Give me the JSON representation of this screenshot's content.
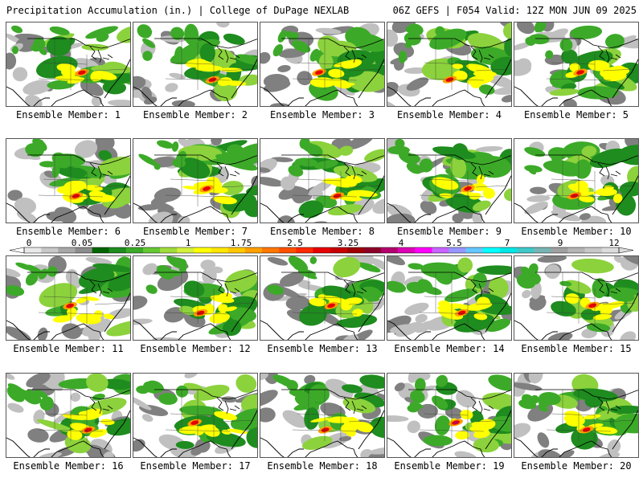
{
  "header": {
    "title": "Precipitation Accumulation (in.) | College of DuPage NEXLAB",
    "valid": "06Z GEFS | F054 Valid: 12Z MON JUN 09 2025"
  },
  "colorbar": {
    "labels": [
      "0",
      "0.05",
      "0.25",
      "1",
      "1.75",
      "2.5",
      "3.25",
      "4",
      "5.5",
      "7",
      "9",
      "12"
    ],
    "colors": [
      "#e8e8e8",
      "#c8c8c8",
      "#a8a8a8",
      "#8c8c8c",
      "#006400",
      "#1e8c1e",
      "#3caa28",
      "#64c832",
      "#a0dc3c",
      "#d2f03c",
      "#ffff00",
      "#ffe600",
      "#ffc800",
      "#ffa000",
      "#ff7800",
      "#ff5000",
      "#ff2800",
      "#e60000",
      "#c80000",
      "#a00000",
      "#8c0028",
      "#b4006e",
      "#dc00b4",
      "#ff00ff",
      "#c864ff",
      "#9696ff",
      "#64c8ff",
      "#00ffff",
      "#00e6e6",
      "#40c8c8",
      "#78b4b4",
      "#a0a0a0",
      "#b4b4b4",
      "#c8c8c8",
      "#dcdcdc"
    ]
  },
  "members": [
    {
      "label": "Ensemble Member: 1"
    },
    {
      "label": "Ensemble Member: 2"
    },
    {
      "label": "Ensemble Member: 3"
    },
    {
      "label": "Ensemble Member: 4"
    },
    {
      "label": "Ensemble Member: 5"
    },
    {
      "label": "Ensemble Member: 6"
    },
    {
      "label": "Ensemble Member: 7"
    },
    {
      "label": "Ensemble Member: 8"
    },
    {
      "label": "Ensemble Member: 9"
    },
    {
      "label": "Ensemble Member: 10"
    },
    {
      "label": "Ensemble Member: 11"
    },
    {
      "label": "Ensemble Member: 12"
    },
    {
      "label": "Ensemble Member: 13"
    },
    {
      "label": "Ensemble Member: 14"
    },
    {
      "label": "Ensemble Member: 15"
    },
    {
      "label": "Ensemble Member: 16"
    },
    {
      "label": "Ensemble Member: 17"
    },
    {
      "label": "Ensemble Member: 18"
    },
    {
      "label": "Ensemble Member: 19"
    },
    {
      "label": "Ensemble Member: 20"
    }
  ],
  "map_colors": {
    "trace": "#c0c0c0",
    "light": "#808080",
    "green_dark": "#1e8c1e",
    "green": "#3caa28",
    "green_light": "#8cd23c",
    "yellow": "#ffff00",
    "orange": "#ffa000",
    "red": "#e60000",
    "purple": "#b4006e"
  }
}
